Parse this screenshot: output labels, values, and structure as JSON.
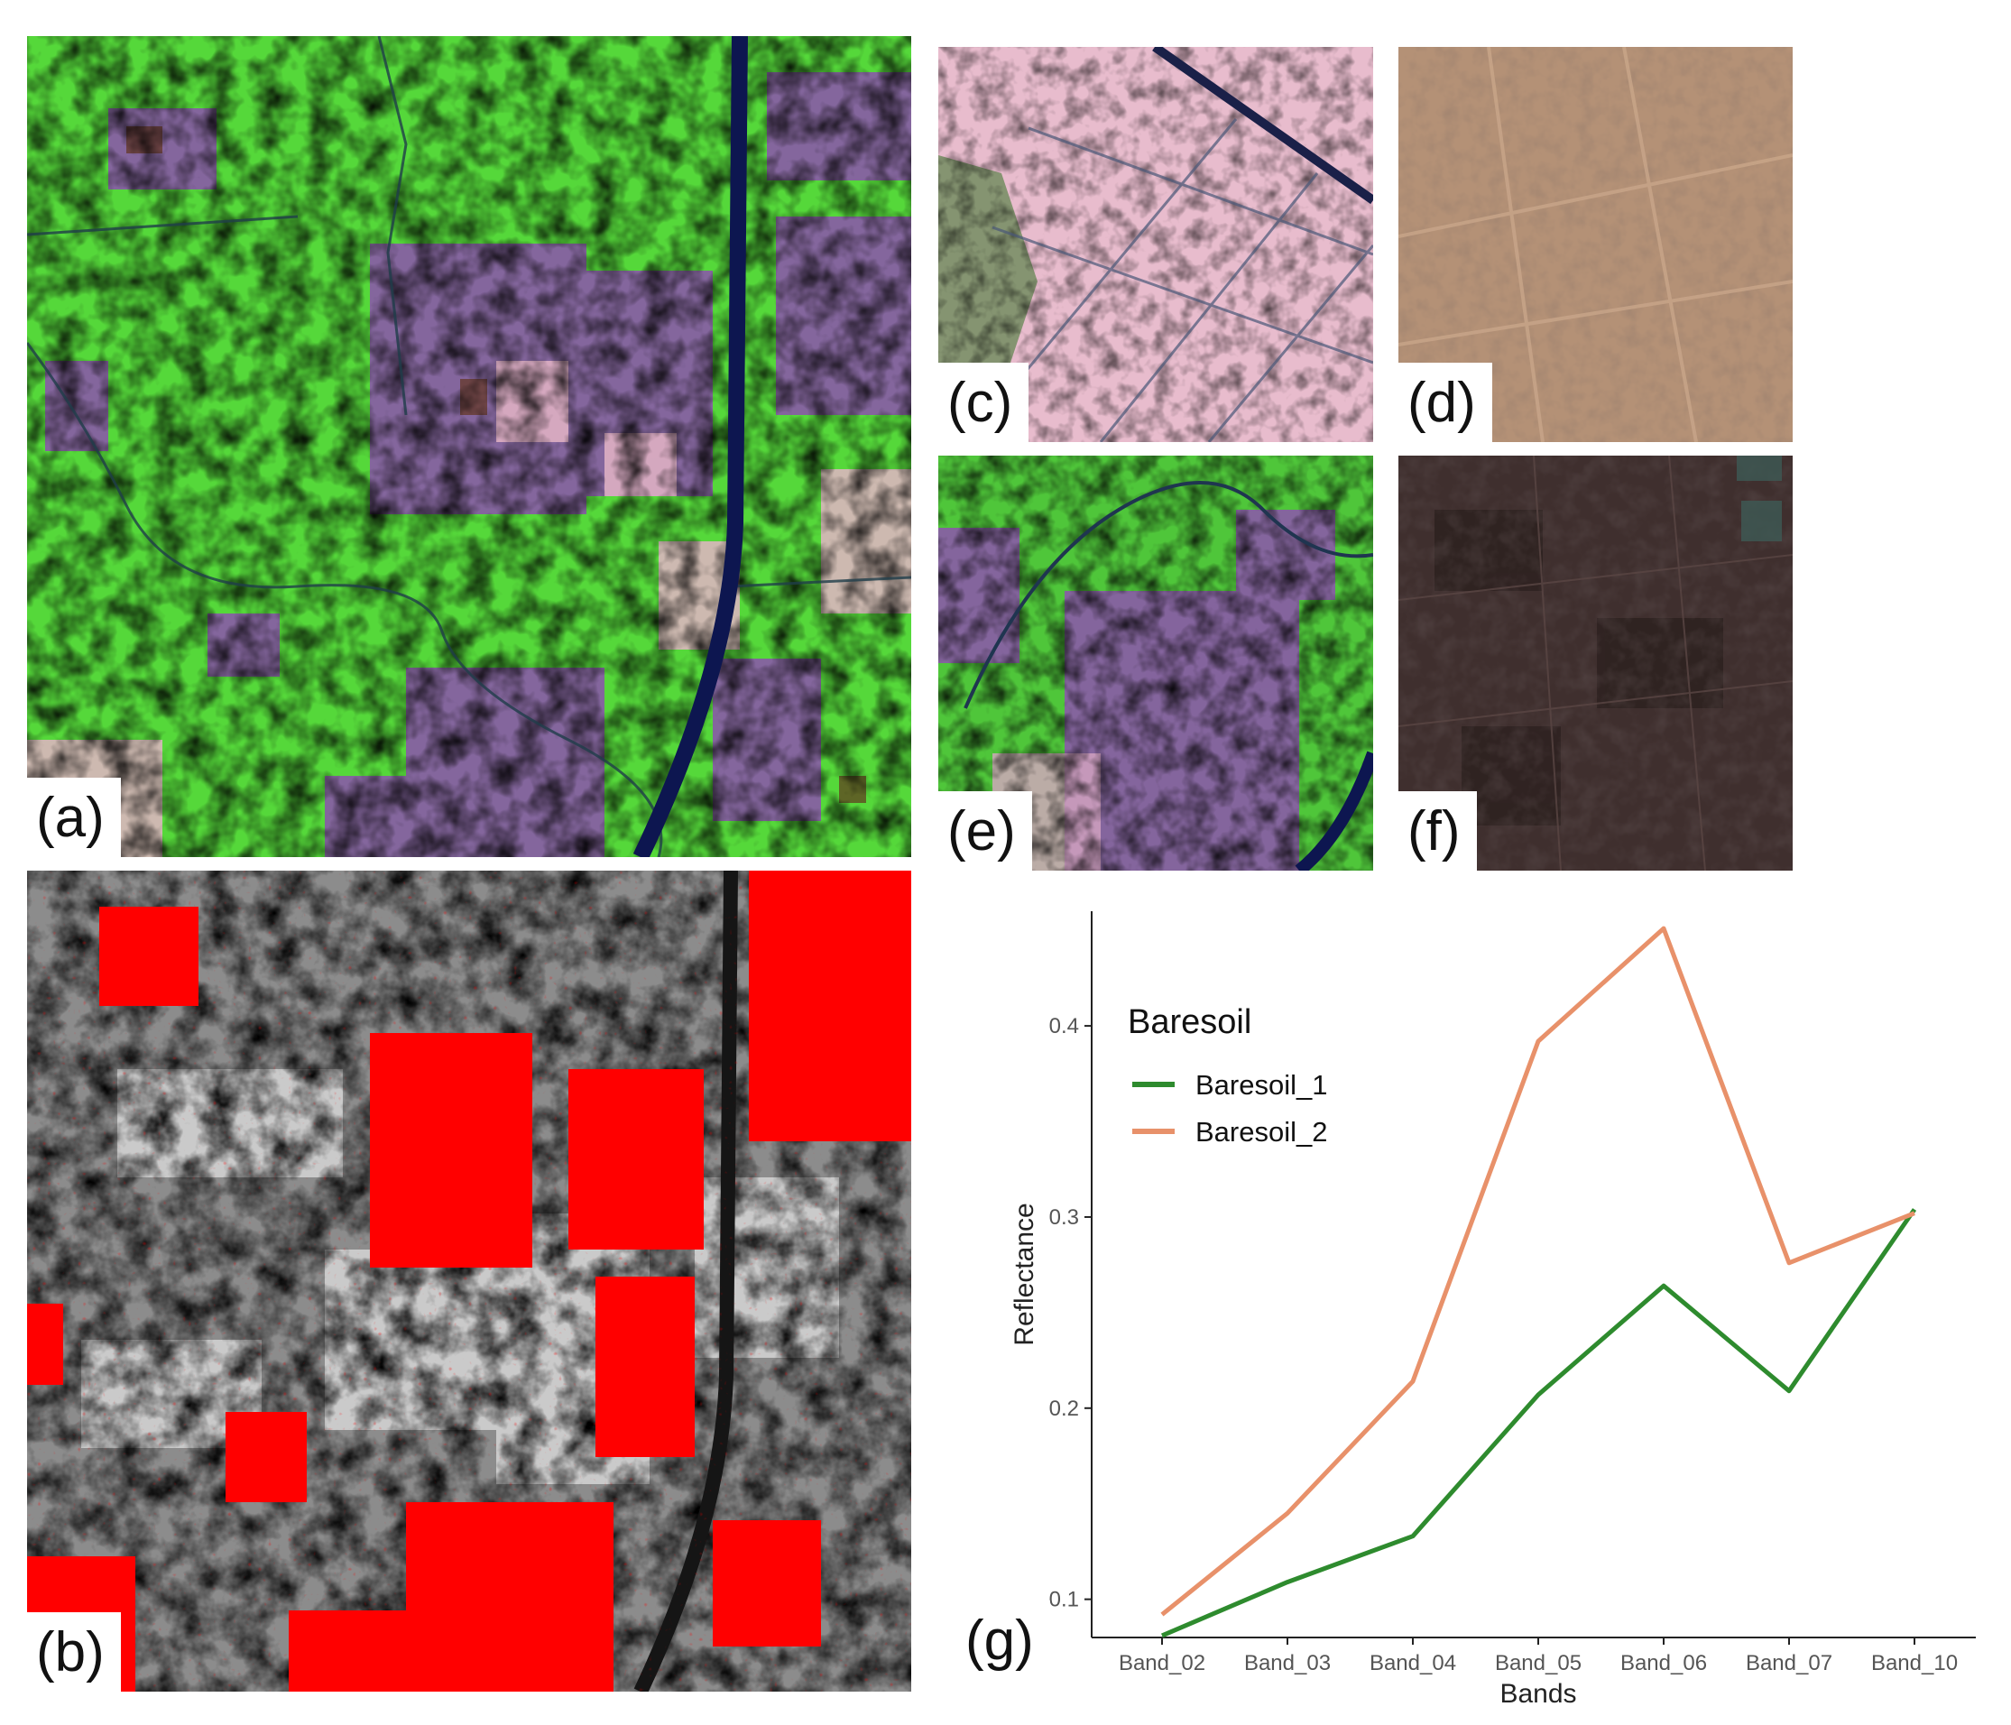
{
  "panels": {
    "a": {
      "label": "(a)"
    },
    "b": {
      "label": "(b)"
    },
    "c": {
      "label": "(c)"
    },
    "d": {
      "label": "(d)"
    },
    "e": {
      "label": "(e)"
    },
    "f": {
      "label": "(f)"
    },
    "g": {
      "label": "(g)"
    }
  },
  "colors": {
    "vegetation": "#5ee830",
    "field_purple": "#8a5aa8",
    "field_pink": "#e6b6c8",
    "water": "#101a5a",
    "soil_dry": "#b49176",
    "soil_dark": "#3f2f2e",
    "mask_red": "#ff0000"
  },
  "chart_data": {
    "type": "line",
    "title": "",
    "xlabel": "Bands",
    "ylabel": "Reflectance",
    "categories": [
      "Band_02",
      "Band_03",
      "Band_04",
      "Band_05",
      "Band_06",
      "Band_07",
      "Band_10"
    ],
    "ylim": [
      0.08,
      0.46
    ],
    "yticks": [
      0.1,
      0.2,
      0.3,
      0.4
    ],
    "grid": false,
    "legend": {
      "title": "Baresoil",
      "placement": "top-left"
    },
    "series": [
      {
        "name": "Baresoil_1",
        "color": "#2e8b2e",
        "values": [
          0.081,
          0.109,
          0.133,
          0.207,
          0.264,
          0.209,
          0.304
        ]
      },
      {
        "name": "Baresoil_2",
        "color": "#e8916a",
        "values": [
          0.092,
          0.145,
          0.214,
          0.392,
          0.451,
          0.276,
          0.302
        ]
      }
    ]
  }
}
